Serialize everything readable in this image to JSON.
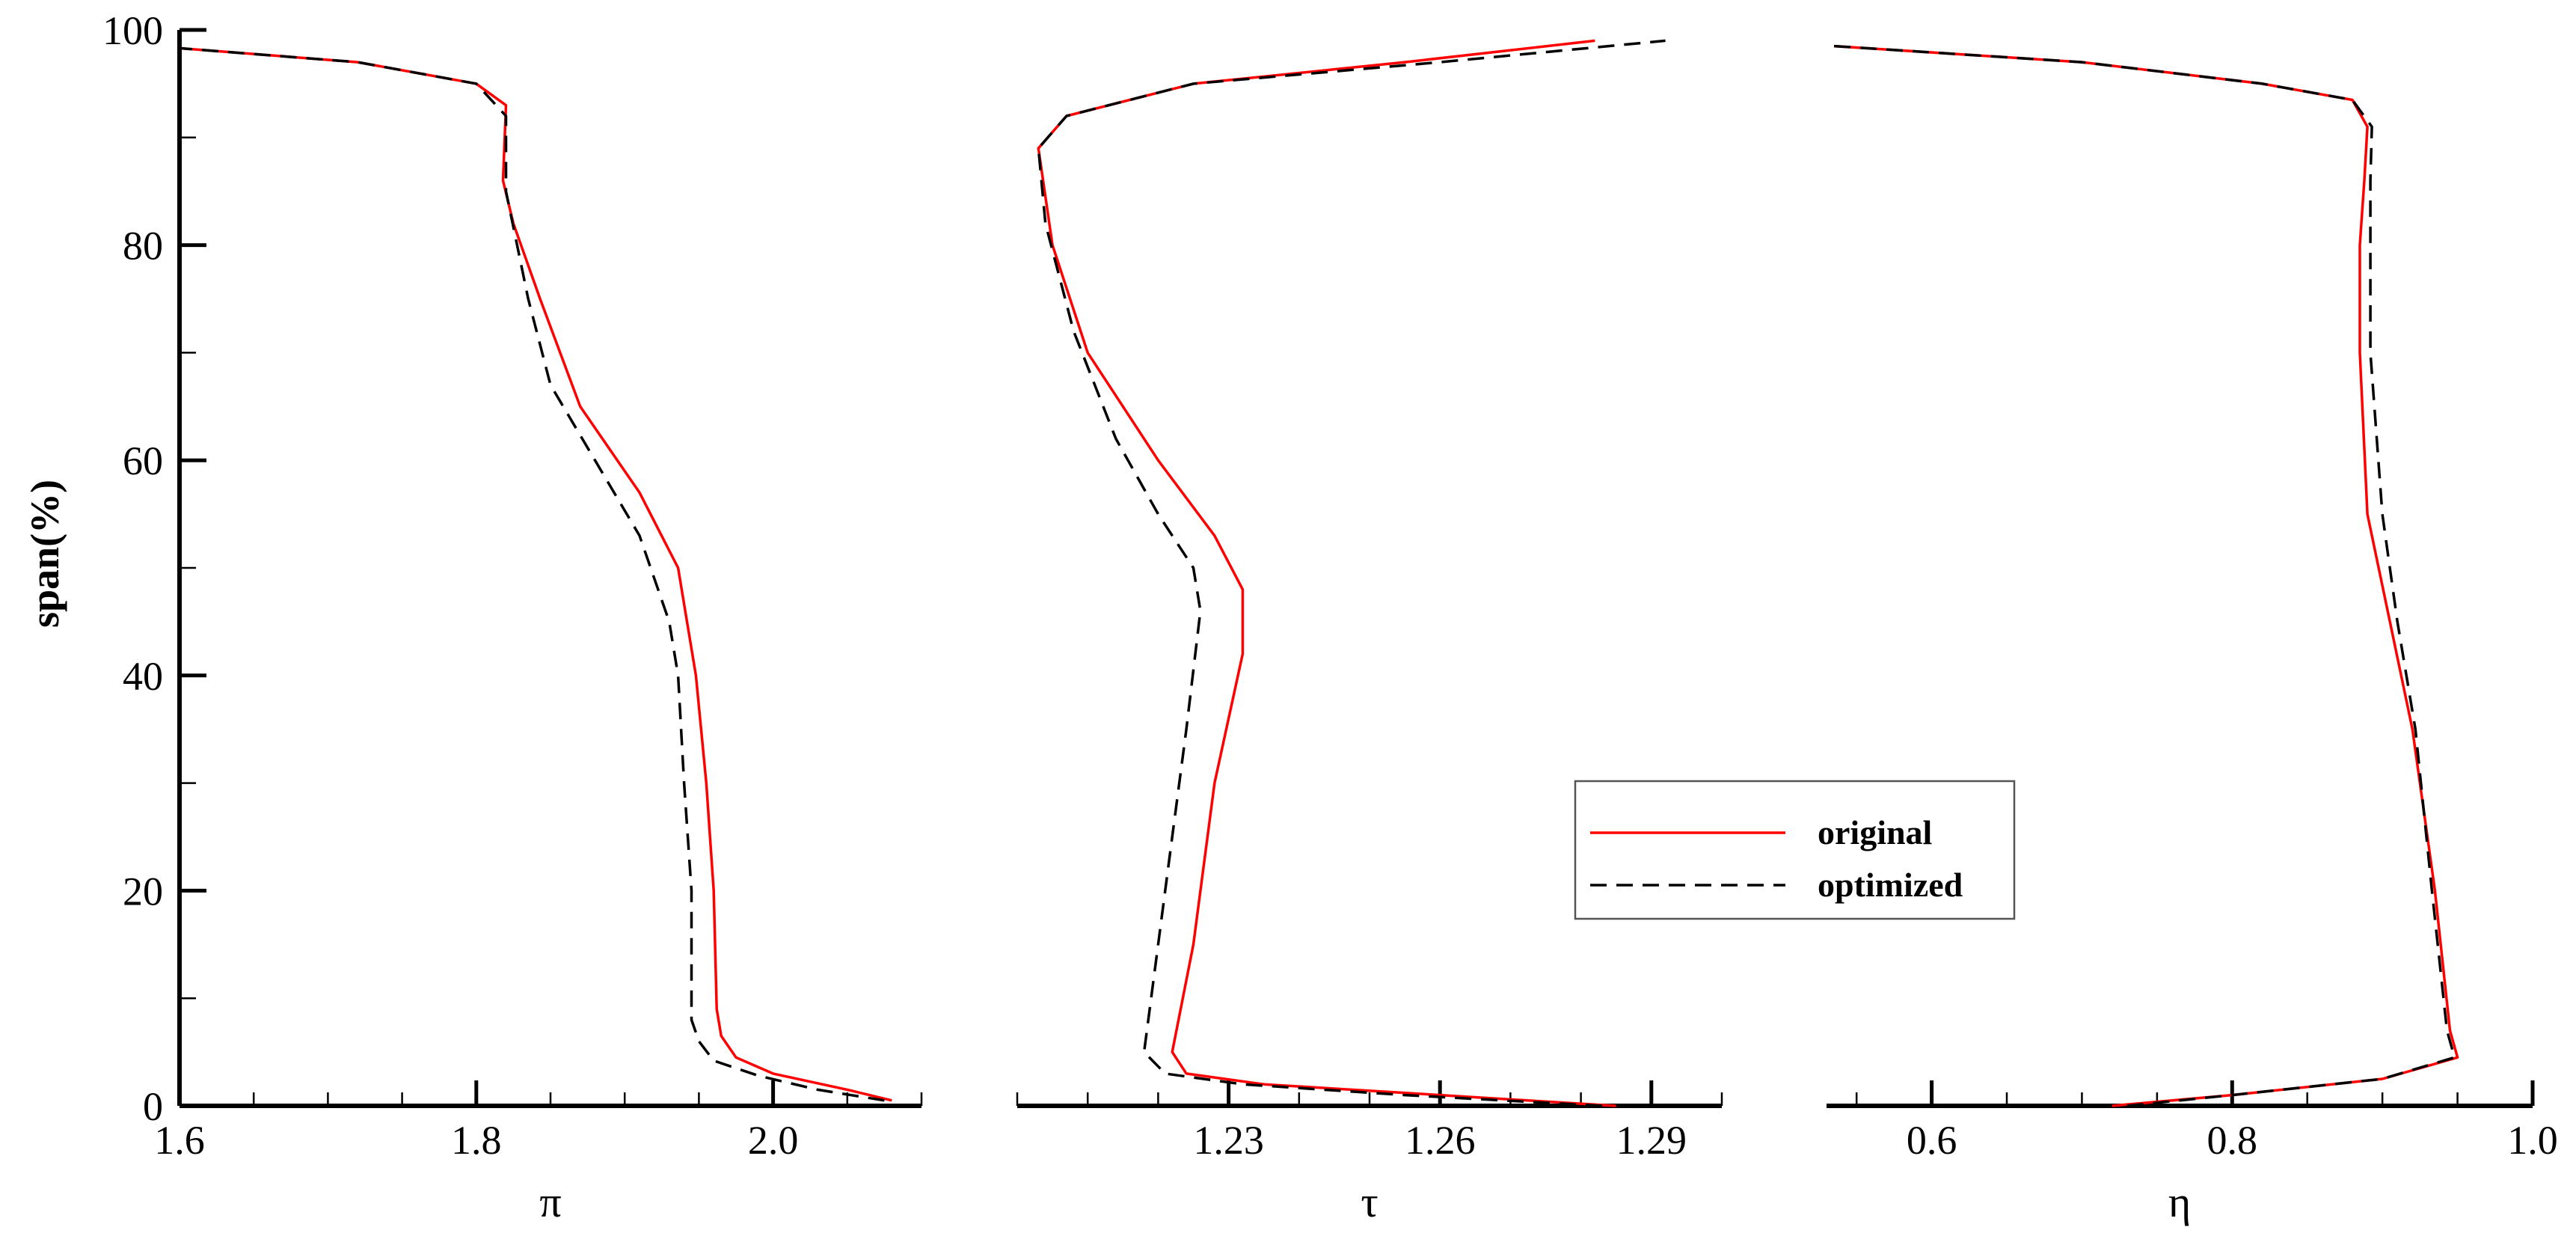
{
  "colors": {
    "original": "#ff0000",
    "optimized": "#000000",
    "axis": "#000000"
  },
  "legend": {
    "placement": "bottom-center",
    "entries": [
      {
        "name": "original",
        "style": "solid",
        "color": "#ff0000"
      },
      {
        "name": "optimized",
        "style": "dashed",
        "color": "#000000"
      }
    ]
  },
  "chart_data": [
    {
      "type": "line",
      "xlabel": "π",
      "ylabel": "span(%)",
      "xlim": [
        1.6,
        2.1
      ],
      "ylim": [
        0,
        100
      ],
      "xticks": [
        "1.6",
        "1.8",
        "2.0"
      ],
      "xtick_values": [
        1.6,
        1.8,
        2.0
      ],
      "xminor_step": 0.05,
      "yticks": [
        "0",
        "20",
        "40",
        "60",
        "80",
        "100"
      ],
      "ytick_values": [
        0,
        20,
        40,
        60,
        80,
        100
      ],
      "yminor_step": 10,
      "series": [
        {
          "name": "original",
          "points": [
            [
              2.08,
              0.5
            ],
            [
              2.05,
              1.5
            ],
            [
              2.0,
              3
            ],
            [
              1.975,
              4.5
            ],
            [
              1.965,
              6.5
            ],
            [
              1.962,
              9
            ],
            [
              1.96,
              20
            ],
            [
              1.955,
              30
            ],
            [
              1.948,
              40
            ],
            [
              1.936,
              50
            ],
            [
              1.91,
              57
            ],
            [
              1.87,
              65
            ],
            [
              1.843,
              75
            ],
            [
              1.825,
              82
            ],
            [
              1.818,
              86
            ],
            [
              1.82,
              93
            ],
            [
              1.8,
              95
            ],
            [
              1.72,
              97
            ],
            [
              1.6,
              98.3
            ]
          ]
        },
        {
          "name": "optimized",
          "points": [
            [
              2.075,
              0.5
            ],
            [
              2.03,
              1.5
            ],
            [
              1.99,
              2.8
            ],
            [
              1.96,
              4.2
            ],
            [
              1.95,
              6
            ],
            [
              1.945,
              8
            ],
            [
              1.945,
              20
            ],
            [
              1.94,
              30
            ],
            [
              1.936,
              40
            ],
            [
              1.93,
              45
            ],
            [
              1.91,
              53
            ],
            [
              1.88,
              60
            ],
            [
              1.85,
              67
            ],
            [
              1.835,
              75
            ],
            [
              1.82,
              85
            ],
            [
              1.82,
              92
            ],
            [
              1.8,
              95
            ],
            [
              1.72,
              97
            ],
            [
              1.6,
              98.3
            ]
          ]
        }
      ]
    },
    {
      "type": "line",
      "xlabel": "τ",
      "ylabel": "",
      "xlim": [
        1.2,
        1.3
      ],
      "ylim": [
        0,
        100
      ],
      "xticks": [
        "1.23",
        "1.26",
        "1.29"
      ],
      "xtick_values": [
        1.23,
        1.26,
        1.29
      ],
      "xminor_step": 0.01,
      "yticks": [],
      "ytick_values": [
        0,
        20,
        40,
        60,
        80,
        100
      ],
      "yminor_step": 10,
      "series": [
        {
          "name": "original",
          "points": [
            [
              1.285,
              0
            ],
            [
              1.26,
              1
            ],
            [
              1.235,
              2
            ],
            [
              1.224,
              3
            ],
            [
              1.222,
              5
            ],
            [
              1.225,
              15
            ],
            [
              1.228,
              30
            ],
            [
              1.232,
              42
            ],
            [
              1.232,
              48
            ],
            [
              1.228,
              53
            ],
            [
              1.22,
              60
            ],
            [
              1.21,
              70
            ],
            [
              1.205,
              80
            ],
            [
              1.203,
              89
            ],
            [
              1.207,
              92
            ],
            [
              1.225,
              95
            ],
            [
              1.255,
              97
            ],
            [
              1.282,
              99
            ]
          ]
        },
        {
          "name": "optimized",
          "points": [
            [
              1.283,
              0
            ],
            [
              1.255,
              1
            ],
            [
              1.232,
              2
            ],
            [
              1.221,
              3
            ],
            [
              1.218,
              5
            ],
            [
              1.22,
              15
            ],
            [
              1.222,
              25
            ],
            [
              1.224,
              35
            ],
            [
              1.226,
              46
            ],
            [
              1.225,
              50
            ],
            [
              1.22,
              55
            ],
            [
              1.214,
              62
            ],
            [
              1.208,
              72
            ],
            [
              1.204,
              82
            ],
            [
              1.203,
              89
            ],
            [
              1.207,
              92
            ],
            [
              1.225,
              95
            ],
            [
              1.26,
              97
            ],
            [
              1.292,
              99
            ]
          ]
        }
      ]
    },
    {
      "type": "line",
      "xlabel": "η",
      "ylabel": "",
      "xlim": [
        0.53,
        1.0
      ],
      "ylim": [
        0,
        100
      ],
      "xticks": [
        "0.6",
        "0.8",
        "1.0"
      ],
      "xtick_values": [
        0.6,
        0.8,
        1.0
      ],
      "xminor_step": 0.05,
      "yticks": [],
      "ytick_values": [
        0,
        20,
        40,
        60,
        80,
        100
      ],
      "yminor_step": 10,
      "series": [
        {
          "name": "original",
          "points": [
            [
              0.72,
              0
            ],
            [
              0.8,
              1
            ],
            [
              0.9,
              2.5
            ],
            [
              0.95,
              4.5
            ],
            [
              0.945,
              7
            ],
            [
              0.935,
              20
            ],
            [
              0.92,
              35
            ],
            [
              0.905,
              45
            ],
            [
              0.89,
              55
            ],
            [
              0.885,
              70
            ],
            [
              0.885,
              80
            ],
            [
              0.888,
              86
            ],
            [
              0.89,
              91
            ],
            [
              0.88,
              93.5
            ],
            [
              0.82,
              95
            ],
            [
              0.7,
              97
            ],
            [
              0.535,
              98.5
            ]
          ]
        },
        {
          "name": "optimized",
          "points": [
            [
              0.73,
              0
            ],
            [
              0.8,
              1
            ],
            [
              0.9,
              2.5
            ],
            [
              0.948,
              4.5
            ],
            [
              0.943,
              7
            ],
            [
              0.933,
              20
            ],
            [
              0.922,
              35
            ],
            [
              0.91,
              45
            ],
            [
              0.9,
              55
            ],
            [
              0.892,
              70
            ],
            [
              0.892,
              80
            ],
            [
              0.892,
              86
            ],
            [
              0.893,
              91
            ],
            [
              0.88,
              93.5
            ],
            [
              0.82,
              95
            ],
            [
              0.7,
              97
            ],
            [
              0.535,
              98.5
            ]
          ]
        }
      ]
    }
  ]
}
